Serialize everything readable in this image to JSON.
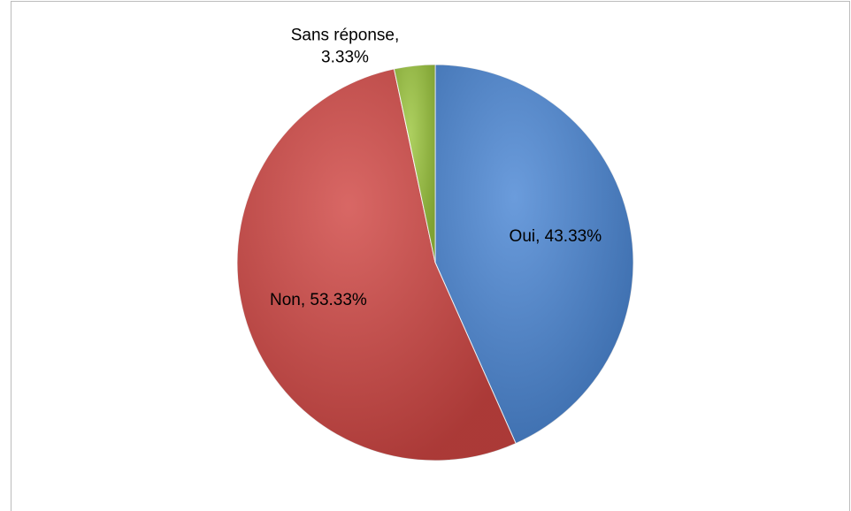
{
  "chart_data": {
    "type": "pie",
    "values": [
      43.33,
      53.33,
      3.33
    ],
    "value_labels": [
      [
        "Oui, 43.33%"
      ],
      [
        "Non, 53.33%"
      ],
      [
        "Sans réponse,",
        "3.33%"
      ]
    ],
    "colors": [
      "#4a86d4",
      "#d04643",
      "#9bc53d"
    ]
  }
}
